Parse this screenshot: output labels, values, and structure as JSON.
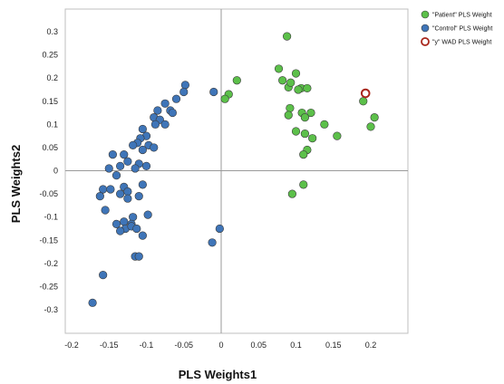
{
  "chart_data": {
    "type": "scatter",
    "title": "",
    "xlabel": "PLS Weights1",
    "ylabel": "PLS Weights2",
    "xlim": [
      -0.2,
      0.22
    ],
    "ylim": [
      -0.32,
      0.34
    ],
    "xticks": [
      -0.2,
      -0.15,
      -0.1,
      -0.05,
      0,
      0.05,
      0.1,
      0.15,
      0.2
    ],
    "xtick_labels": [
      "-0.2",
      "-0.15",
      "-0.1",
      "-0.05",
      "0",
      "0.05",
      "0.1",
      "0.15",
      "0.2"
    ],
    "yticks": [
      0.3,
      0.25,
      0.2,
      0.15,
      0.1,
      0.05,
      0,
      -0.05,
      -0.1,
      -0.15,
      -0.2,
      -0.25,
      -0.3
    ],
    "ytick_labels": [
      "0.3",
      "0.25",
      "0.2",
      "0.15",
      "0.1",
      "0.05",
      "0",
      "-0.05",
      "-0.1",
      "-0.15",
      "-0.2",
      "-0.25",
      "-0.3"
    ],
    "grid": false,
    "zero_lines": true,
    "legend": "top-right",
    "series": [
      {
        "name": "\"Patient\" PLS Weight",
        "color": "#5cc04a",
        "points": [
          [
            0.088,
            0.29
          ],
          [
            0.077,
            0.22
          ],
          [
            0.021,
            0.195
          ],
          [
            0.1,
            0.21
          ],
          [
            0.082,
            0.195
          ],
          [
            0.09,
            0.18
          ],
          [
            0.093,
            0.19
          ],
          [
            0.107,
            0.178
          ],
          [
            0.103,
            0.175
          ],
          [
            0.115,
            0.178
          ],
          [
            0.01,
            0.165
          ],
          [
            0.005,
            0.155
          ],
          [
            0.092,
            0.135
          ],
          [
            0.09,
            0.12
          ],
          [
            0.108,
            0.125
          ],
          [
            0.12,
            0.125
          ],
          [
            0.112,
            0.115
          ],
          [
            0.138,
            0.1
          ],
          [
            0.1,
            0.085
          ],
          [
            0.112,
            0.08
          ],
          [
            0.122,
            0.07
          ],
          [
            0.155,
            0.075
          ],
          [
            0.115,
            0.045
          ],
          [
            0.11,
            0.035
          ],
          [
            0.19,
            0.15
          ],
          [
            0.205,
            0.115
          ],
          [
            0.2,
            0.095
          ],
          [
            0.11,
            -0.03
          ],
          [
            0.095,
            -0.05
          ]
        ]
      },
      {
        "name": "\"Control\" PLS Weight",
        "color": "#3f75b8",
        "points": [
          [
            -0.048,
            0.185
          ],
          [
            -0.05,
            0.17
          ],
          [
            -0.06,
            0.155
          ],
          [
            -0.01,
            0.17
          ],
          [
            -0.075,
            0.145
          ],
          [
            -0.068,
            0.13
          ],
          [
            -0.085,
            0.13
          ],
          [
            -0.065,
            0.125
          ],
          [
            -0.09,
            0.115
          ],
          [
            -0.082,
            0.11
          ],
          [
            -0.075,
            0.1
          ],
          [
            -0.088,
            0.1
          ],
          [
            -0.105,
            0.09
          ],
          [
            -0.1,
            0.075
          ],
          [
            -0.108,
            0.07
          ],
          [
            -0.097,
            0.055
          ],
          [
            -0.112,
            0.06
          ],
          [
            -0.09,
            0.05
          ],
          [
            -0.118,
            0.055
          ],
          [
            -0.105,
            0.045
          ],
          [
            -0.13,
            0.035
          ],
          [
            -0.145,
            0.035
          ],
          [
            -0.125,
            0.02
          ],
          [
            -0.11,
            0.015
          ],
          [
            -0.1,
            0.01
          ],
          [
            -0.115,
            0.005
          ],
          [
            -0.135,
            0.01
          ],
          [
            -0.15,
            0.005
          ],
          [
            -0.14,
            -0.01
          ],
          [
            -0.105,
            -0.03
          ],
          [
            -0.158,
            -0.04
          ],
          [
            -0.148,
            -0.04
          ],
          [
            -0.13,
            -0.035
          ],
          [
            -0.125,
            -0.045
          ],
          [
            -0.135,
            -0.05
          ],
          [
            -0.162,
            -0.055
          ],
          [
            -0.11,
            -0.055
          ],
          [
            -0.125,
            -0.06
          ],
          [
            -0.155,
            -0.085
          ],
          [
            -0.118,
            -0.1
          ],
          [
            -0.13,
            -0.11
          ],
          [
            -0.14,
            -0.115
          ],
          [
            -0.12,
            -0.115
          ],
          [
            -0.128,
            -0.125
          ],
          [
            -0.135,
            -0.13
          ],
          [
            -0.12,
            -0.12
          ],
          [
            -0.098,
            -0.095
          ],
          [
            -0.113,
            -0.125
          ],
          [
            -0.105,
            -0.14
          ],
          [
            -0.002,
            -0.125
          ],
          [
            -0.012,
            -0.155
          ],
          [
            -0.115,
            -0.185
          ],
          [
            -0.11,
            -0.185
          ],
          [
            -0.158,
            -0.225
          ],
          [
            -0.172,
            -0.285
          ]
        ]
      },
      {
        "name": "\"y\" WAD PLS Weight",
        "color": "#ffffff",
        "stroke": "#a8271c",
        "points": [
          [
            0.193,
            0.167
          ]
        ]
      }
    ]
  }
}
